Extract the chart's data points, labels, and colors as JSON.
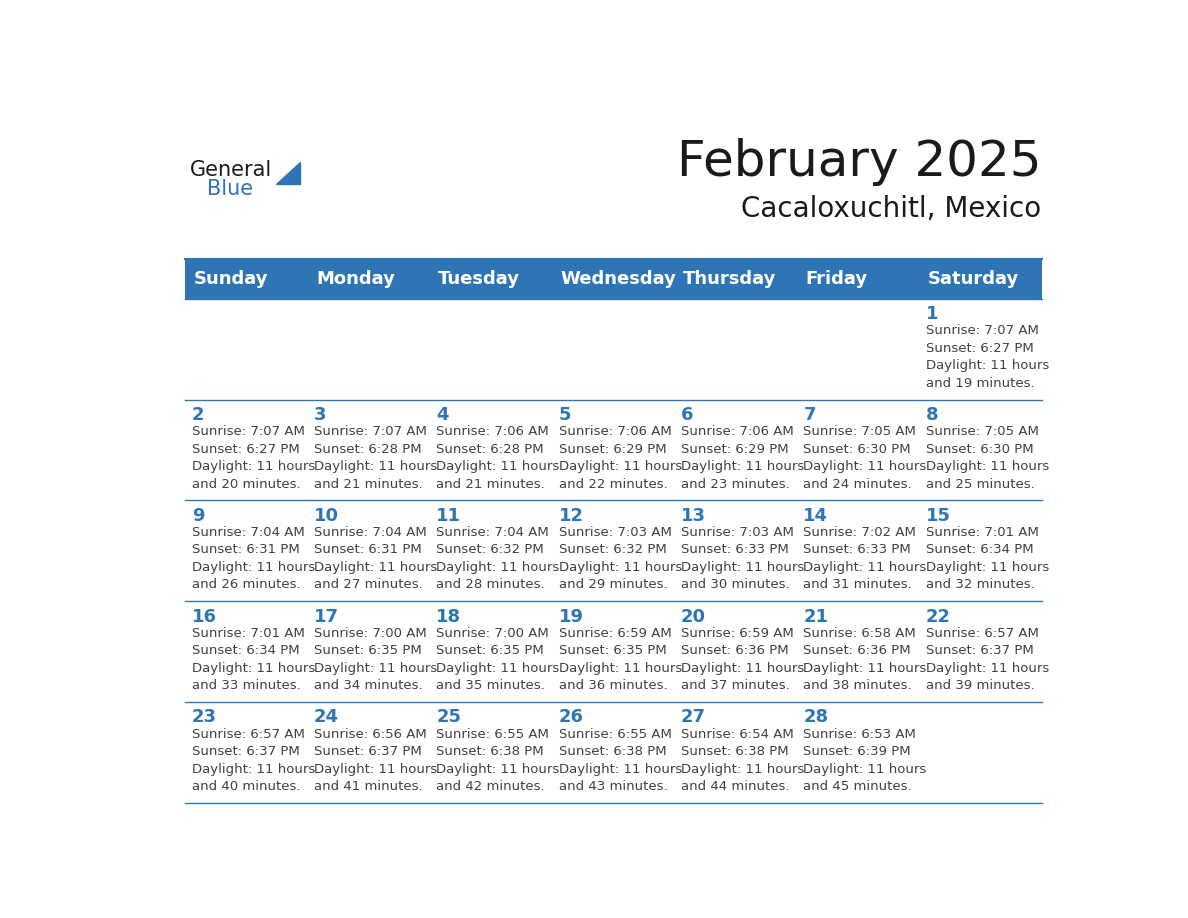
{
  "title": "February 2025",
  "subtitle": "Cacaloxuchitl, Mexico",
  "header_color": "#2e75b6",
  "header_text_color": "#ffffff",
  "cell_bg_color": "#ffffff",
  "border_color": "#2e75b6",
  "day_number_color": "#2e75b6",
  "info_text_color": "#404040",
  "days_of_week": [
    "Sunday",
    "Monday",
    "Tuesday",
    "Wednesday",
    "Thursday",
    "Friday",
    "Saturday"
  ],
  "weeks": [
    [
      {
        "day": "",
        "info": ""
      },
      {
        "day": "",
        "info": ""
      },
      {
        "day": "",
        "info": ""
      },
      {
        "day": "",
        "info": ""
      },
      {
        "day": "",
        "info": ""
      },
      {
        "day": "",
        "info": ""
      },
      {
        "day": "1",
        "info": "Sunrise: 7:07 AM\nSunset: 6:27 PM\nDaylight: 11 hours\nand 19 minutes."
      }
    ],
    [
      {
        "day": "2",
        "info": "Sunrise: 7:07 AM\nSunset: 6:27 PM\nDaylight: 11 hours\nand 20 minutes."
      },
      {
        "day": "3",
        "info": "Sunrise: 7:07 AM\nSunset: 6:28 PM\nDaylight: 11 hours\nand 21 minutes."
      },
      {
        "day": "4",
        "info": "Sunrise: 7:06 AM\nSunset: 6:28 PM\nDaylight: 11 hours\nand 21 minutes."
      },
      {
        "day": "5",
        "info": "Sunrise: 7:06 AM\nSunset: 6:29 PM\nDaylight: 11 hours\nand 22 minutes."
      },
      {
        "day": "6",
        "info": "Sunrise: 7:06 AM\nSunset: 6:29 PM\nDaylight: 11 hours\nand 23 minutes."
      },
      {
        "day": "7",
        "info": "Sunrise: 7:05 AM\nSunset: 6:30 PM\nDaylight: 11 hours\nand 24 minutes."
      },
      {
        "day": "8",
        "info": "Sunrise: 7:05 AM\nSunset: 6:30 PM\nDaylight: 11 hours\nand 25 minutes."
      }
    ],
    [
      {
        "day": "9",
        "info": "Sunrise: 7:04 AM\nSunset: 6:31 PM\nDaylight: 11 hours\nand 26 minutes."
      },
      {
        "day": "10",
        "info": "Sunrise: 7:04 AM\nSunset: 6:31 PM\nDaylight: 11 hours\nand 27 minutes."
      },
      {
        "day": "11",
        "info": "Sunrise: 7:04 AM\nSunset: 6:32 PM\nDaylight: 11 hours\nand 28 minutes."
      },
      {
        "day": "12",
        "info": "Sunrise: 7:03 AM\nSunset: 6:32 PM\nDaylight: 11 hours\nand 29 minutes."
      },
      {
        "day": "13",
        "info": "Sunrise: 7:03 AM\nSunset: 6:33 PM\nDaylight: 11 hours\nand 30 minutes."
      },
      {
        "day": "14",
        "info": "Sunrise: 7:02 AM\nSunset: 6:33 PM\nDaylight: 11 hours\nand 31 minutes."
      },
      {
        "day": "15",
        "info": "Sunrise: 7:01 AM\nSunset: 6:34 PM\nDaylight: 11 hours\nand 32 minutes."
      }
    ],
    [
      {
        "day": "16",
        "info": "Sunrise: 7:01 AM\nSunset: 6:34 PM\nDaylight: 11 hours\nand 33 minutes."
      },
      {
        "day": "17",
        "info": "Sunrise: 7:00 AM\nSunset: 6:35 PM\nDaylight: 11 hours\nand 34 minutes."
      },
      {
        "day": "18",
        "info": "Sunrise: 7:00 AM\nSunset: 6:35 PM\nDaylight: 11 hours\nand 35 minutes."
      },
      {
        "day": "19",
        "info": "Sunrise: 6:59 AM\nSunset: 6:35 PM\nDaylight: 11 hours\nand 36 minutes."
      },
      {
        "day": "20",
        "info": "Sunrise: 6:59 AM\nSunset: 6:36 PM\nDaylight: 11 hours\nand 37 minutes."
      },
      {
        "day": "21",
        "info": "Sunrise: 6:58 AM\nSunset: 6:36 PM\nDaylight: 11 hours\nand 38 minutes."
      },
      {
        "day": "22",
        "info": "Sunrise: 6:57 AM\nSunset: 6:37 PM\nDaylight: 11 hours\nand 39 minutes."
      }
    ],
    [
      {
        "day": "23",
        "info": "Sunrise: 6:57 AM\nSunset: 6:37 PM\nDaylight: 11 hours\nand 40 minutes."
      },
      {
        "day": "24",
        "info": "Sunrise: 6:56 AM\nSunset: 6:37 PM\nDaylight: 11 hours\nand 41 minutes."
      },
      {
        "day": "25",
        "info": "Sunrise: 6:55 AM\nSunset: 6:38 PM\nDaylight: 11 hours\nand 42 minutes."
      },
      {
        "day": "26",
        "info": "Sunrise: 6:55 AM\nSunset: 6:38 PM\nDaylight: 11 hours\nand 43 minutes."
      },
      {
        "day": "27",
        "info": "Sunrise: 6:54 AM\nSunset: 6:38 PM\nDaylight: 11 hours\nand 44 minutes."
      },
      {
        "day": "28",
        "info": "Sunrise: 6:53 AM\nSunset: 6:39 PM\nDaylight: 11 hours\nand 45 minutes."
      },
      {
        "day": "",
        "info": ""
      }
    ]
  ],
  "logo_general_color": "#1a1a1a",
  "logo_blue_color": "#2e75b6",
  "title_fontsize": 36,
  "subtitle_fontsize": 20,
  "header_fontsize": 13,
  "day_number_fontsize": 13,
  "info_fontsize": 9.5
}
